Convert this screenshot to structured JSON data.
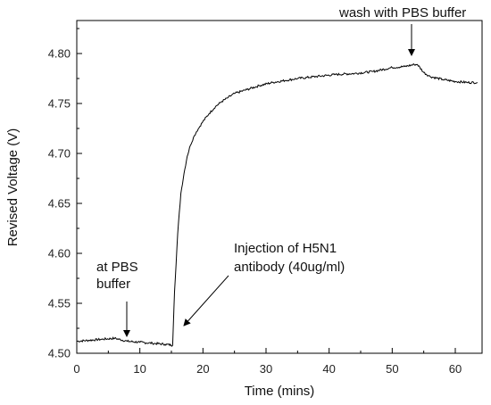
{
  "chart_data": {
    "type": "line",
    "title": "",
    "xlabel": "Time (mins)",
    "ylabel": "Revised Voltage (V)",
    "xlim": [
      0,
      65
    ],
    "ylim": [
      4.5,
      4.83
    ],
    "x_ticks": [
      0,
      10,
      20,
      30,
      40,
      50,
      60
    ],
    "x_tick_labels": [
      "0",
      "10",
      "20",
      "30",
      "40",
      "50",
      "60"
    ],
    "y_ticks": [
      4.5,
      4.55,
      4.6,
      4.65,
      4.7,
      4.75,
      4.8
    ],
    "y_tick_labels": [
      "4.50",
      "4.55",
      "4.60",
      "4.65",
      "4.70",
      "4.75",
      "4.80"
    ],
    "grid": false,
    "legend": "none",
    "line_color": "#000000",
    "series": [
      {
        "x": [
          0,
          2,
          4,
          6,
          8,
          10,
          12,
          14,
          15.2,
          15.4,
          15.5,
          16,
          16.5,
          17,
          17.5,
          18,
          18.5,
          19,
          19.5,
          20,
          21,
          22,
          23,
          24,
          25,
          27,
          29,
          31,
          33,
          35,
          38,
          41,
          44,
          47,
          50,
          52,
          53.5,
          54,
          55,
          56,
          58,
          60,
          62,
          63.5
        ],
        "y": [
          4.512,
          4.513,
          4.514,
          4.515,
          4.512,
          4.511,
          4.51,
          4.509,
          4.508,
          4.545,
          4.562,
          4.62,
          4.66,
          4.68,
          4.697,
          4.708,
          4.716,
          4.722,
          4.727,
          4.732,
          4.74,
          4.747,
          4.752,
          4.756,
          4.76,
          4.764,
          4.768,
          4.771,
          4.773,
          4.775,
          4.777,
          4.779,
          4.78,
          4.782,
          4.786,
          4.787,
          4.789,
          4.789,
          4.781,
          4.777,
          4.774,
          4.772,
          4.771,
          4.771
        ]
      }
    ],
    "annotations": [
      {
        "id": "pbs",
        "lines": [
          "at PBS",
          "buffer"
        ],
        "target": [
          7.9,
          4.518
        ]
      },
      {
        "id": "injection",
        "lines": [
          "Injection of H5N1",
          "antibody (40ug/ml)"
        ],
        "target": [
          16.8,
          4.528
        ]
      },
      {
        "id": "wash",
        "lines": [
          "wash with PBS buffer"
        ],
        "target": [
          53.7,
          4.791
        ]
      }
    ]
  }
}
